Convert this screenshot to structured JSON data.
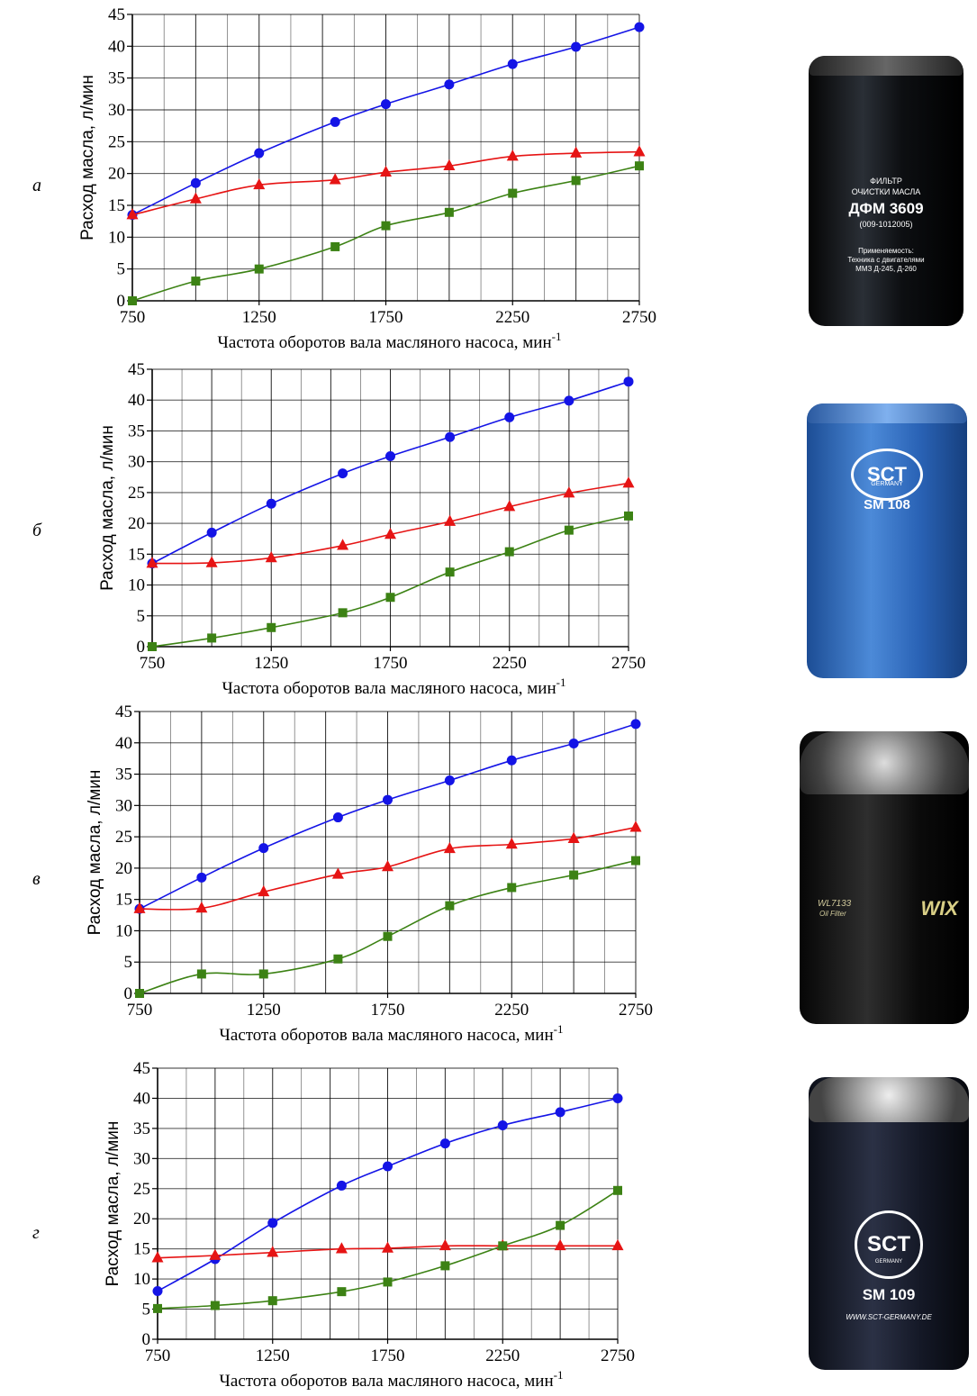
{
  "panels": [
    {
      "letter": "а",
      "filter": {
        "lines": [
          "ФИЛЬТР",
          "ОЧИСТКИ МАСЛА",
          "ДФМ 3609",
          "(009-1012005)",
          "Применяемость:",
          "Техника с двигателями",
          "ММЗ Д-245, Д-260"
        ]
      }
    },
    {
      "letter": "б",
      "filter": {
        "brand": "SCT",
        "brand_sub": "GERMANY",
        "model": "SM 108"
      }
    },
    {
      "letter": "в",
      "filter": {
        "brand": "WIX",
        "model": "WL7133",
        "model_sub": "Oil Filter"
      }
    },
    {
      "letter": "г",
      "filter": {
        "brand": "SCT",
        "brand_sub": "GERMANY",
        "model": "SM 109",
        "url": "WWW.SCT-GERMANY.DE"
      }
    }
  ],
  "colors": {
    "blue": "#1414e6",
    "red": "#e61414",
    "green": "#3c8214",
    "grid": "#000000"
  },
  "chart_data": [
    {
      "type": "line",
      "xlabel": "Частота оборотов вала масляного насоса, мин",
      "xlabel_sup": "-1",
      "ylabel": "Расход масла, л/мин",
      "xlim": [
        750,
        2750
      ],
      "ylim": [
        0,
        45
      ],
      "x_ticks": [
        750,
        1250,
        1750,
        2250,
        2750
      ],
      "y_ticks": [
        0,
        5,
        10,
        15,
        20,
        25,
        30,
        35,
        40,
        45
      ],
      "grid": true,
      "series": [
        {
          "marker": "circle",
          "color": "#1414e6",
          "x": [
            750,
            1000,
            1250,
            1550,
            1750,
            2000,
            2250,
            2500,
            2750
          ],
          "y": [
            13.5,
            18.5,
            23.2,
            28.1,
            30.9,
            34.0,
            37.2,
            39.9,
            43.0
          ]
        },
        {
          "marker": "triangle",
          "color": "#e61414",
          "x": [
            750,
            1000,
            1250,
            1550,
            1750,
            2000,
            2250,
            2500,
            2750
          ],
          "y": [
            13.5,
            16.0,
            18.2,
            19.0,
            20.2,
            21.2,
            22.7,
            23.2,
            23.4
          ]
        },
        {
          "marker": "square",
          "color": "#3c8214",
          "x": [
            750,
            1000,
            1250,
            1550,
            1750,
            2000,
            2250,
            2500,
            2750
          ],
          "y": [
            0,
            3.1,
            5.0,
            8.5,
            11.8,
            13.9,
            16.9,
            18.9,
            21.2
          ]
        }
      ]
    },
    {
      "type": "line",
      "xlabel": "Частота оборотов вала масляного насоса, мин",
      "xlabel_sup": "-1",
      "ylabel": "Расход масла, л/мин",
      "xlim": [
        750,
        2750
      ],
      "ylim": [
        0,
        45
      ],
      "x_ticks": [
        750,
        1250,
        1750,
        2250,
        2750
      ],
      "y_ticks": [
        0,
        5,
        10,
        15,
        20,
        25,
        30,
        35,
        40,
        45
      ],
      "grid": true,
      "series": [
        {
          "marker": "circle",
          "color": "#1414e6",
          "x": [
            750,
            1000,
            1250,
            1550,
            1750,
            2000,
            2250,
            2500,
            2750
          ],
          "y": [
            13.5,
            18.5,
            23.2,
            28.1,
            30.9,
            34.0,
            37.2,
            39.9,
            43.0
          ]
        },
        {
          "marker": "triangle",
          "color": "#e61414",
          "x": [
            750,
            1000,
            1250,
            1550,
            1750,
            2000,
            2250,
            2500,
            2750
          ],
          "y": [
            13.5,
            13.6,
            14.4,
            16.4,
            18.2,
            20.3,
            22.7,
            24.9,
            26.5
          ]
        },
        {
          "marker": "square",
          "color": "#3c8214",
          "x": [
            750,
            1000,
            1250,
            1550,
            1750,
            2000,
            2250,
            2500,
            2750
          ],
          "y": [
            0,
            1.4,
            3.1,
            5.5,
            8.0,
            12.1,
            15.4,
            18.9,
            21.2
          ]
        }
      ]
    },
    {
      "type": "line",
      "xlabel": "Частота оборотов вала масляного насоса, мин",
      "xlabel_sup": "-1",
      "ylabel": "Расход масла, л/мин",
      "xlim": [
        750,
        2750
      ],
      "ylim": [
        0,
        45
      ],
      "x_ticks": [
        750,
        1250,
        1750,
        2250,
        2750
      ],
      "y_ticks": [
        0,
        5,
        10,
        15,
        20,
        25,
        30,
        35,
        40,
        45
      ],
      "grid": true,
      "series": [
        {
          "marker": "circle",
          "color": "#1414e6",
          "x": [
            750,
            1000,
            1250,
            1550,
            1750,
            2000,
            2250,
            2500,
            2750
          ],
          "y": [
            13.5,
            18.5,
            23.2,
            28.1,
            30.9,
            34.0,
            37.2,
            39.9,
            43.0
          ]
        },
        {
          "marker": "triangle",
          "color": "#e61414",
          "x": [
            750,
            1000,
            1250,
            1550,
            1750,
            2000,
            2250,
            2500,
            2750
          ],
          "y": [
            13.5,
            13.6,
            16.2,
            19.0,
            20.2,
            23.1,
            23.8,
            24.7,
            26.5
          ]
        },
        {
          "marker": "square",
          "color": "#3c8214",
          "x": [
            750,
            1000,
            1250,
            1550,
            1750,
            2000,
            2250,
            2500,
            2750
          ],
          "y": [
            0,
            3.1,
            3.1,
            5.5,
            9.1,
            14.0,
            16.9,
            18.9,
            21.2
          ]
        }
      ]
    },
    {
      "type": "line",
      "xlabel": "Частота оборотов вала масляного насоса, мин",
      "xlabel_sup": "-1",
      "ylabel": "Расход масла, л/мин",
      "xlim": [
        750,
        2750
      ],
      "ylim": [
        0,
        45
      ],
      "x_ticks": [
        750,
        1250,
        1750,
        2250,
        2750
      ],
      "y_ticks": [
        0,
        5,
        10,
        15,
        20,
        25,
        30,
        35,
        40,
        45
      ],
      "grid": true,
      "series": [
        {
          "marker": "circle",
          "color": "#1414e6",
          "x": [
            750,
            1000,
            1250,
            1550,
            1750,
            2000,
            2250,
            2500,
            2750
          ],
          "y": [
            8.0,
            13.3,
            19.3,
            25.5,
            28.7,
            32.5,
            35.5,
            37.7,
            40.0
          ]
        },
        {
          "marker": "triangle",
          "color": "#e61414",
          "x": [
            750,
            1000,
            1250,
            1550,
            1750,
            2000,
            2250,
            2500,
            2750
          ],
          "y": [
            13.5,
            13.9,
            14.4,
            15.0,
            15.1,
            15.5,
            15.5,
            15.5,
            15.5
          ]
        },
        {
          "marker": "square",
          "color": "#3c8214",
          "x": [
            750,
            1000,
            1250,
            1550,
            1750,
            2000,
            2250,
            2500,
            2750
          ],
          "y": [
            5.1,
            5.6,
            6.4,
            7.9,
            9.5,
            12.2,
            15.5,
            18.9,
            24.7
          ]
        }
      ]
    }
  ]
}
